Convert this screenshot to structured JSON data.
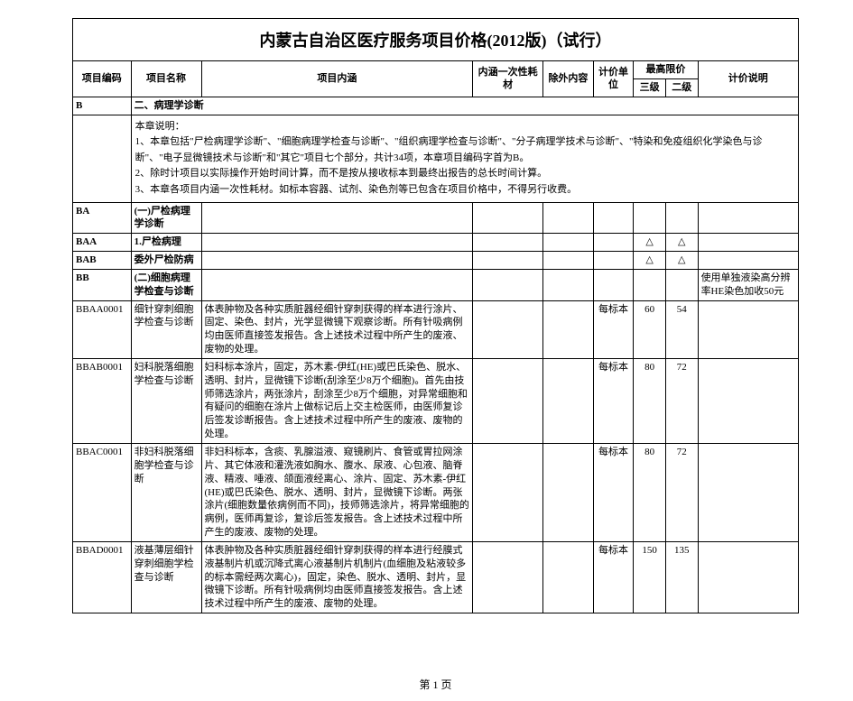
{
  "title": "内蒙古自治区医疗服务项目价格(2012版)（试行）",
  "header": {
    "code": "项目编码",
    "name": "项目名称",
    "desc": "项目内涵",
    "consumable": "内涵一次性耗材",
    "exclude": "除外内容",
    "unit": "计价单位",
    "max_price": "最高限价",
    "level3": "三级",
    "level2": "二级",
    "note": "计价说明"
  },
  "section_b": {
    "code": "B",
    "title": "二、病理学诊断",
    "notes_label": "本章说明：",
    "note1": "1、本章包括\"尸检病理学诊断\"、\"细胞病理学检查与诊断\"、\"组织病理学检查与诊断\"、\"分子病理学技术与诊断\"、\"特染和免疫组织化学染色与诊断\"、\"电子显微镜技术与诊断\"和\"其它\"项目七个部分，共计34项，本章项目编码字首为B。",
    "note2": "2、除时计项目以实际操作开始时间计算，而不是按从接收标本到最终出报告的总长时间计算。",
    "note3": "3、本章各项目内涵一次性耗材。如标本容器、试剂、染色剂等已包含在项目价格中，不得另行收费。"
  },
  "rows": {
    "ba": {
      "code": "BA",
      "name": "(一)尸检病理学诊断"
    },
    "baa": {
      "code": "BAA",
      "name": "1.尸检病理",
      "l3": "△",
      "l2": "△"
    },
    "bab": {
      "code": "BAB",
      "name": "委外尸检防病",
      "l3": "△",
      "l2": "△"
    },
    "bb": {
      "code": "BB",
      "name": "(二)细胞病理学检查与诊断",
      "note": "使用单独液染高分辨率HE染色加收50元"
    },
    "bbaa": {
      "code": "BBAA0001",
      "name": "细针穿刺细胞学检查与诊断",
      "desc": "体表肿物及各种实质脏器经细针穿刺获得的样本进行涂片、固定、染色、封片，光学显微镜下观察诊断。所有针吸病例均由医师直接签发报告。含上述技术过程中所产生的废液、废物的处理。",
      "unit": "每标本",
      "l3": "60",
      "l2": "54"
    },
    "bbab": {
      "code": "BBAB0001",
      "name": "妇科脱落细胞学检查与诊断",
      "desc": "妇科标本涂片，固定，苏木素-伊红(HE)或巴氏染色、脱水、透明、封片，显微镜下诊断(刮涂至少8万个细胞)。首先由技师筛选涂片，两张涂片，刮涂至少8万个细胞，对异常细胞和有疑问的细胞在涂片上做标记后上交主检医师，由医师复诊后签发诊断报告。含上述技术过程中所产生的废液、废物的处理。",
      "unit": "每标本",
      "l3": "80",
      "l2": "72"
    },
    "bbac": {
      "code": "BBAC0001",
      "name": "非妇科脱落细胞学检查与诊断",
      "desc": "非妇科标本，含痰、乳腺溢液、窥镜刷片、食管或胃拉网涂片、其它体液和灌洗液如胸水、腹水、尿液、心包液、脑脊液、精液、唾液、颌面液经离心、涂片、固定、苏木素-伊红(HE)或巴氏染色、脱水、透明、封片，显微镜下诊断。两张涂片(细胞数量依病例而不同)，技师筛选涂片，将异常细胞的病例，医师再复诊，复诊后签发报告。含上述技术过程中所产生的废液、废物的处理。",
      "unit": "每标本",
      "l3": "80",
      "l2": "72"
    },
    "bbad": {
      "code": "BBAD0001",
      "name": "液基薄层细针穿刺细胞学检查与诊断",
      "desc": "体表肿物及各种实质脏器经细针穿刺获得的样本进行经膜式液基制片机或沉降式离心液基制片机制片(血细胞及粘液较多的标本需经两次离心)，固定，染色、脱水、透明、封片，显微镜下诊断。所有针吸病例均由医师直接签发报告。含上述技术过程中所产生的废液、废物的处理。",
      "unit": "每标本",
      "l3": "150",
      "l2": "135"
    }
  },
  "footer": "第 1 页"
}
